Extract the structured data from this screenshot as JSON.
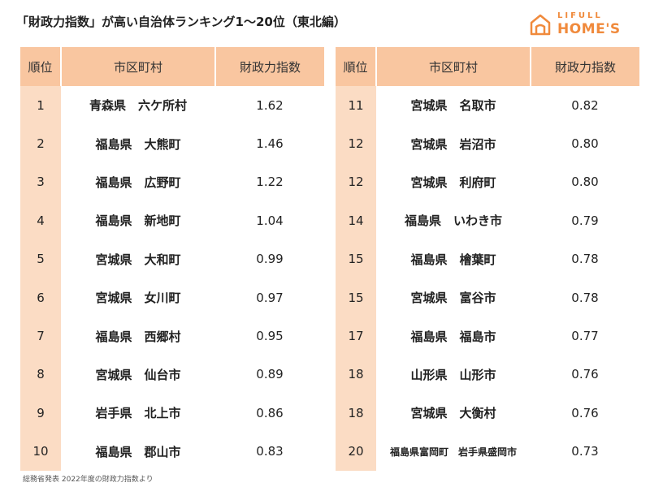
{
  "title": "「財政力指数」が高い自治体ランキング1〜20位（東北編）",
  "logo": {
    "line1": "LIFULL",
    "line2": "HOME'S",
    "color": "#f08a3c"
  },
  "colors": {
    "header_bg": "#f9c6a0",
    "rank_bg": "#fbdcc4"
  },
  "chart_data": {
    "type": "table",
    "title": "「財政力指数」が高い自治体ランキング1〜20位（東北編）",
    "columns": [
      "順位",
      "市区町村",
      "財政力指数"
    ],
    "rows": [
      {
        "rank": "1",
        "name": "青森県　六ケ所村",
        "value": "1.62"
      },
      {
        "rank": "2",
        "name": "福島県　大熊町",
        "value": "1.46"
      },
      {
        "rank": "3",
        "name": "福島県　広野町",
        "value": "1.22"
      },
      {
        "rank": "4",
        "name": "福島県　新地町",
        "value": "1.04"
      },
      {
        "rank": "5",
        "name": "宮城県　大和町",
        "value": "0.99"
      },
      {
        "rank": "6",
        "name": "宮城県　女川町",
        "value": "0.97"
      },
      {
        "rank": "7",
        "name": "福島県　西郷村",
        "value": "0.95"
      },
      {
        "rank": "8",
        "name": "宮城県　仙台市",
        "value": "0.89"
      },
      {
        "rank": "9",
        "name": "岩手県　北上市",
        "value": "0.86"
      },
      {
        "rank": "10",
        "name": "福島県　郡山市",
        "value": "0.83"
      },
      {
        "rank": "11",
        "name": "宮城県　名取市",
        "value": "0.82"
      },
      {
        "rank": "12",
        "name": "宮城県　岩沼市",
        "value": "0.80"
      },
      {
        "rank": "12",
        "name": "宮城県　利府町",
        "value": "0.80"
      },
      {
        "rank": "14",
        "name": "福島県　いわき市",
        "value": "0.79"
      },
      {
        "rank": "15",
        "name": "福島県　檜葉町",
        "value": "0.78"
      },
      {
        "rank": "15",
        "name": "宮城県　富谷市",
        "value": "0.78"
      },
      {
        "rank": "17",
        "name": "福島県　福島市",
        "value": "0.77"
      },
      {
        "rank": "18",
        "name": "山形県　山形市",
        "value": "0.76"
      },
      {
        "rank": "18",
        "name": "宮城県　大衡村",
        "value": "0.76"
      },
      {
        "rank": "20",
        "name": "福島県富岡町　岩手県盛岡市",
        "value": "0.73"
      }
    ]
  },
  "footer": "総務省発表 2022年度の財政力指数より"
}
